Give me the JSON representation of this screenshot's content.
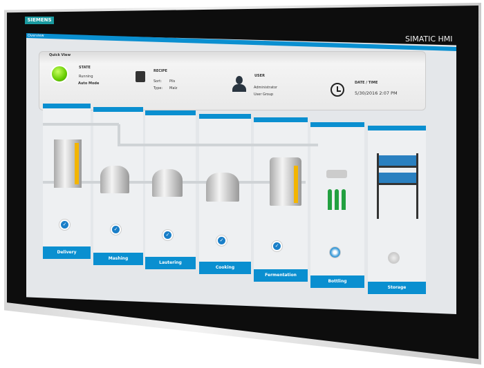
{
  "device": {
    "brand": "SIEMENS",
    "model": "SIMATIC HMI"
  },
  "screen": {
    "tab": "Overview",
    "quick_view": {
      "title": "Quick View",
      "state": {
        "label": "STATE",
        "status": "Running",
        "mode": "Auto Mode",
        "indicator_color": "#66cc00"
      },
      "recipe": {
        "label": "RECIPE",
        "sort_label": "Sort:",
        "sort_value": "Pils",
        "type_label": "Type:",
        "type_value": "Malz"
      },
      "user": {
        "label": "USER",
        "name": "Administrator",
        "group": "User Group"
      },
      "datetime": {
        "label": "DATE / TIME",
        "value": "5/30/2016 2:07 PM"
      }
    },
    "stages": [
      {
        "label": "Delivery",
        "status": "done"
      },
      {
        "label": "Mashing",
        "status": "done"
      },
      {
        "label": "Lautering",
        "status": "done"
      },
      {
        "label": "Cooking",
        "status": "done"
      },
      {
        "label": "Fermentation",
        "status": "done"
      },
      {
        "label": "Bottling",
        "status": "in-progress"
      },
      {
        "label": "Storage",
        "status": "idle"
      }
    ],
    "accent": "#0a8fd0"
  }
}
